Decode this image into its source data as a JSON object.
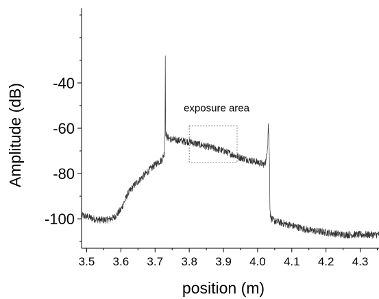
{
  "chart_data": {
    "type": "line",
    "title": "",
    "xlabel": "position (m)",
    "ylabel": "Amplitude (dB)",
    "xlim": [
      3.485,
      4.355
    ],
    "ylim": [
      -113,
      -7
    ],
    "x_ticks": [
      3.5,
      3.6,
      3.7,
      3.8,
      3.9,
      4.0,
      4.1,
      4.2,
      4.3
    ],
    "x_tick_labels": [
      "3.5",
      "3.6",
      "3.7",
      "3.8",
      "3.9",
      "4.0",
      "4.1",
      "4.2",
      "4.3"
    ],
    "y_ticks": [
      -40,
      -60,
      -80,
      -100
    ],
    "y_tick_labels": [
      "-40",
      "-60",
      "-80",
      "-100"
    ],
    "grid": false,
    "legend": "none",
    "line_color": "#333333",
    "series": [
      {
        "x": [
          3.485,
          3.5,
          3.52,
          3.54,
          3.56,
          3.58,
          3.6,
          3.62,
          3.64,
          3.66,
          3.68,
          3.7,
          3.72,
          3.727,
          3.729,
          3.73,
          3.731,
          3.733,
          3.735,
          3.75,
          3.8,
          3.85,
          3.9,
          3.95,
          4.0,
          4.02,
          4.025,
          4.03,
          4.031,
          4.033,
          4.035,
          4.036,
          4.038,
          4.04,
          4.05,
          4.1,
          4.15,
          4.2,
          4.25,
          4.3,
          4.355
        ],
        "y": [
          -98.5,
          -99,
          -100,
          -100.5,
          -100.5,
          -99.5,
          -96,
          -89,
          -85,
          -82,
          -79,
          -76,
          -74,
          -71,
          -63,
          -28,
          -62,
          -63,
          -64,
          -65,
          -66,
          -68,
          -70,
          -73,
          -75,
          -76,
          -74,
          -66,
          -58,
          -65,
          -76,
          -95,
          -99,
          -100,
          -101,
          -103,
          -105,
          -106,
          -107,
          -107,
          -107
        ]
      }
    ],
    "annotations": [
      {
        "text": "exposure area",
        "x": 3.88,
        "y": -51,
        "box": {
          "x": [
            3.8,
            3.94
          ],
          "y": [
            -75,
            -59
          ]
        }
      }
    ]
  }
}
